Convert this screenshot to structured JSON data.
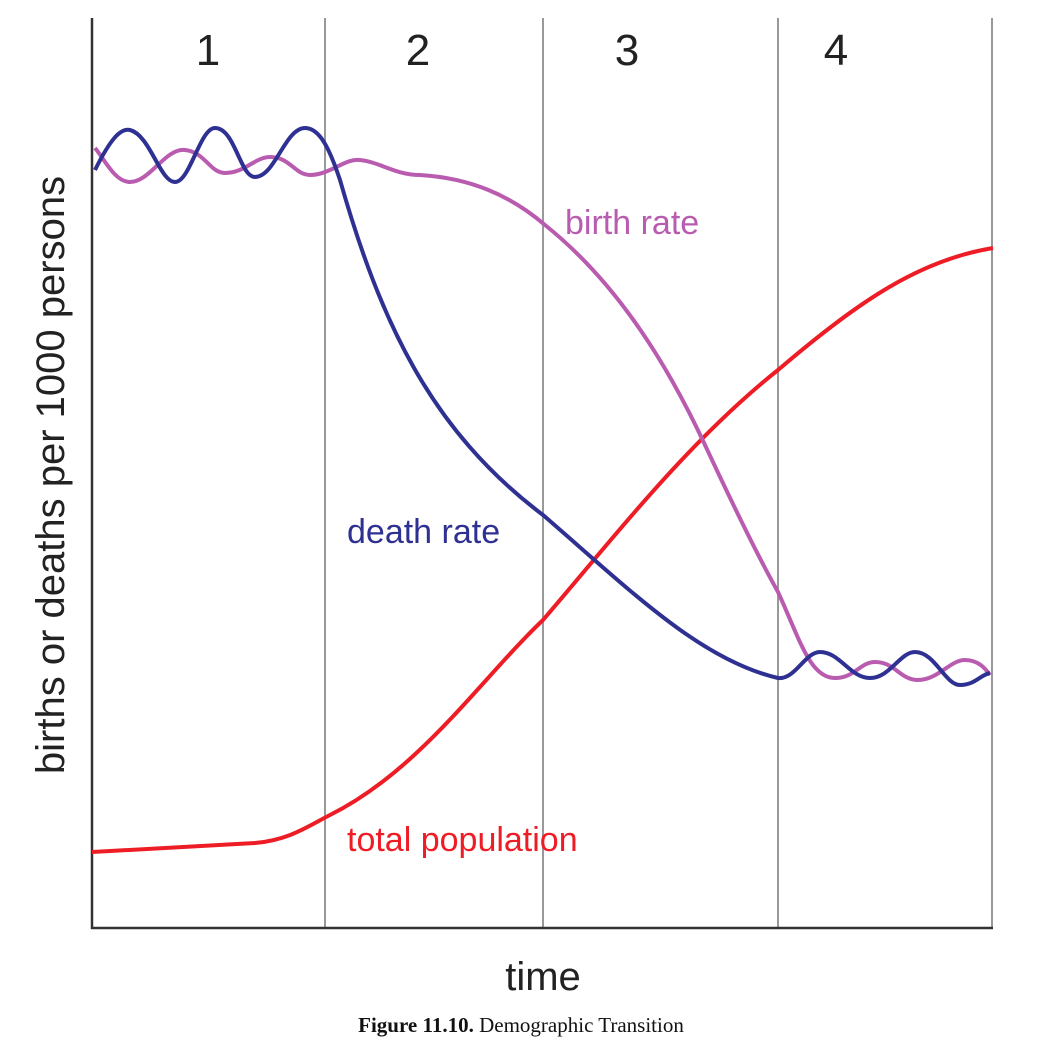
{
  "stages": [
    "1",
    "2",
    "3",
    "4"
  ],
  "y_axis_label": "births or deaths per 1000 persons",
  "x_axis_label": "time",
  "curve_labels": {
    "birth_rate": "birth rate",
    "death_rate": "death rate",
    "total_population": "total population"
  },
  "caption": {
    "label": "Figure 11.10.",
    "text": "Demographic Transition"
  }
}
